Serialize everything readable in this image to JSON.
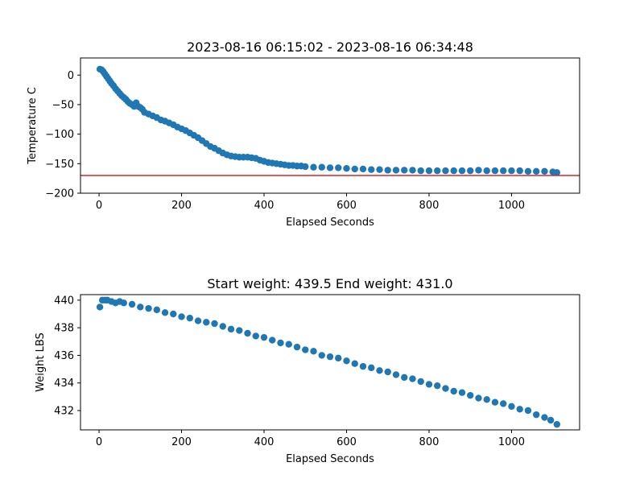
{
  "colors": {
    "series": "#1f77b4",
    "reference_line": "#d62728",
    "axes": "#000000",
    "background": "#ffffff"
  },
  "chart_data": [
    {
      "type": "scatter",
      "title": "2023-08-16 06:15:02 - 2023-08-16 06:34:48",
      "xlabel": "Elapsed Seconds",
      "ylabel": "Temperature C",
      "xlim": [
        -45,
        1165
      ],
      "ylim": [
        -200,
        29
      ],
      "xticks": [
        0,
        200,
        400,
        600,
        800,
        1000
      ],
      "yticks": [
        0,
        -50,
        -100,
        -150,
        -200
      ],
      "xtick_labels": [
        "0",
        "200",
        "400",
        "600",
        "800",
        "1000"
      ],
      "ytick_labels": [
        "0",
        "−50",
        "−100",
        "−150",
        "−200"
      ],
      "grid": false,
      "reference_line": {
        "y": -170,
        "color": "#d62728"
      },
      "series": [
        {
          "points": [
            [
              2,
              10
            ],
            [
              6,
              9
            ],
            [
              10,
              6
            ],
            [
              14,
              2
            ],
            [
              18,
              -2
            ],
            [
              22,
              -6
            ],
            [
              26,
              -10
            ],
            [
              30,
              -14
            ],
            [
              35,
              -18
            ],
            [
              40,
              -23
            ],
            [
              45,
              -27
            ],
            [
              50,
              -31
            ],
            [
              55,
              -35
            ],
            [
              60,
              -38
            ],
            [
              65,
              -41
            ],
            [
              70,
              -45
            ],
            [
              75,
              -48
            ],
            [
              80,
              -50
            ],
            [
              85,
              -53
            ],
            [
              90,
              -47
            ],
            [
              95,
              -53
            ],
            [
              100,
              -55
            ],
            [
              105,
              -58
            ],
            [
              110,
              -63
            ],
            [
              120,
              -66
            ],
            [
              130,
              -69
            ],
            [
              140,
              -72
            ],
            [
              150,
              -76
            ],
            [
              160,
              -78
            ],
            [
              170,
              -81
            ],
            [
              180,
              -84
            ],
            [
              190,
              -88
            ],
            [
              200,
              -91
            ],
            [
              210,
              -94
            ],
            [
              220,
              -98
            ],
            [
              230,
              -102
            ],
            [
              240,
              -106
            ],
            [
              250,
              -111
            ],
            [
              260,
              -116
            ],
            [
              270,
              -121
            ],
            [
              280,
              -124
            ],
            [
              290,
              -128
            ],
            [
              300,
              -132
            ],
            [
              310,
              -135
            ],
            [
              320,
              -137
            ],
            [
              330,
              -138
            ],
            [
              340,
              -139
            ],
            [
              350,
              -139
            ],
            [
              360,
              -139
            ],
            [
              370,
              -140
            ],
            [
              380,
              -141
            ],
            [
              390,
              -144
            ],
            [
              400,
              -146
            ],
            [
              410,
              -148
            ],
            [
              420,
              -149
            ],
            [
              430,
              -150
            ],
            [
              440,
              -151
            ],
            [
              450,
              -152
            ],
            [
              460,
              -153
            ],
            [
              470,
              -153
            ],
            [
              480,
              -154
            ],
            [
              490,
              -154
            ],
            [
              500,
              -155
            ],
            [
              520,
              -156
            ],
            [
              540,
              -156
            ],
            [
              560,
              -157
            ],
            [
              580,
              -157
            ],
            [
              600,
              -158
            ],
            [
              620,
              -159
            ],
            [
              640,
              -159
            ],
            [
              660,
              -160
            ],
            [
              680,
              -160
            ],
            [
              700,
              -161
            ],
            [
              720,
              -161
            ],
            [
              740,
              -161
            ],
            [
              760,
              -161
            ],
            [
              780,
              -162
            ],
            [
              800,
              -162
            ],
            [
              820,
              -162
            ],
            [
              840,
              -162
            ],
            [
              860,
              -162
            ],
            [
              880,
              -162
            ],
            [
              900,
              -162
            ],
            [
              920,
              -161
            ],
            [
              940,
              -162
            ],
            [
              960,
              -162
            ],
            [
              980,
              -162
            ],
            [
              1000,
              -162
            ],
            [
              1020,
              -162
            ],
            [
              1040,
              -163
            ],
            [
              1060,
              -163
            ],
            [
              1080,
              -163
            ],
            [
              1100,
              -164
            ],
            [
              1110,
              -165
            ]
          ]
        }
      ]
    },
    {
      "type": "scatter",
      "title": "Start weight: 439.5 End weight: 431.0",
      "xlabel": "Elapsed Seconds",
      "ylabel": "Weight LBS",
      "xlim": [
        -45,
        1165
      ],
      "ylim": [
        430.6,
        440.4
      ],
      "xticks": [
        0,
        200,
        400,
        600,
        800,
        1000
      ],
      "yticks": [
        432,
        434,
        436,
        438,
        440
      ],
      "xtick_labels": [
        "0",
        "200",
        "400",
        "600",
        "800",
        "1000"
      ],
      "ytick_labels": [
        "432",
        "434",
        "436",
        "438",
        "440"
      ],
      "grid": false,
      "series": [
        {
          "points": [
            [
              2,
              439.5
            ],
            [
              8,
              440.0
            ],
            [
              15,
              440.0
            ],
            [
              20,
              440.0
            ],
            [
              30,
              439.9
            ],
            [
              40,
              439.8
            ],
            [
              50,
              439.9
            ],
            [
              60,
              439.8
            ],
            [
              80,
              439.7
            ],
            [
              100,
              439.5
            ],
            [
              120,
              439.4
            ],
            [
              140,
              439.3
            ],
            [
              160,
              439.1
            ],
            [
              180,
              439.0
            ],
            [
              200,
              438.8
            ],
            [
              220,
              438.7
            ],
            [
              240,
              438.5
            ],
            [
              260,
              438.4
            ],
            [
              280,
              438.3
            ],
            [
              300,
              438.1
            ],
            [
              320,
              437.9
            ],
            [
              340,
              437.8
            ],
            [
              360,
              437.6
            ],
            [
              380,
              437.4
            ],
            [
              400,
              437.3
            ],
            [
              420,
              437.1
            ],
            [
              440,
              436.9
            ],
            [
              460,
              436.8
            ],
            [
              480,
              436.6
            ],
            [
              500,
              436.4
            ],
            [
              520,
              436.3
            ],
            [
              540,
              436.0
            ],
            [
              560,
              435.9
            ],
            [
              580,
              435.8
            ],
            [
              600,
              435.6
            ],
            [
              620,
              435.4
            ],
            [
              640,
              435.2
            ],
            [
              660,
              435.1
            ],
            [
              680,
              434.9
            ],
            [
              700,
              434.8
            ],
            [
              720,
              434.6
            ],
            [
              740,
              434.4
            ],
            [
              760,
              434.3
            ],
            [
              780,
              434.1
            ],
            [
              800,
              433.9
            ],
            [
              820,
              433.8
            ],
            [
              840,
              433.6
            ],
            [
              860,
              433.4
            ],
            [
              880,
              433.3
            ],
            [
              900,
              433.1
            ],
            [
              920,
              432.9
            ],
            [
              940,
              432.8
            ],
            [
              960,
              432.6
            ],
            [
              980,
              432.5
            ],
            [
              1000,
              432.3
            ],
            [
              1020,
              432.1
            ],
            [
              1040,
              432.0
            ],
            [
              1060,
              431.7
            ],
            [
              1080,
              431.5
            ],
            [
              1095,
              431.3
            ],
            [
              1110,
              431.0
            ]
          ]
        }
      ]
    }
  ]
}
